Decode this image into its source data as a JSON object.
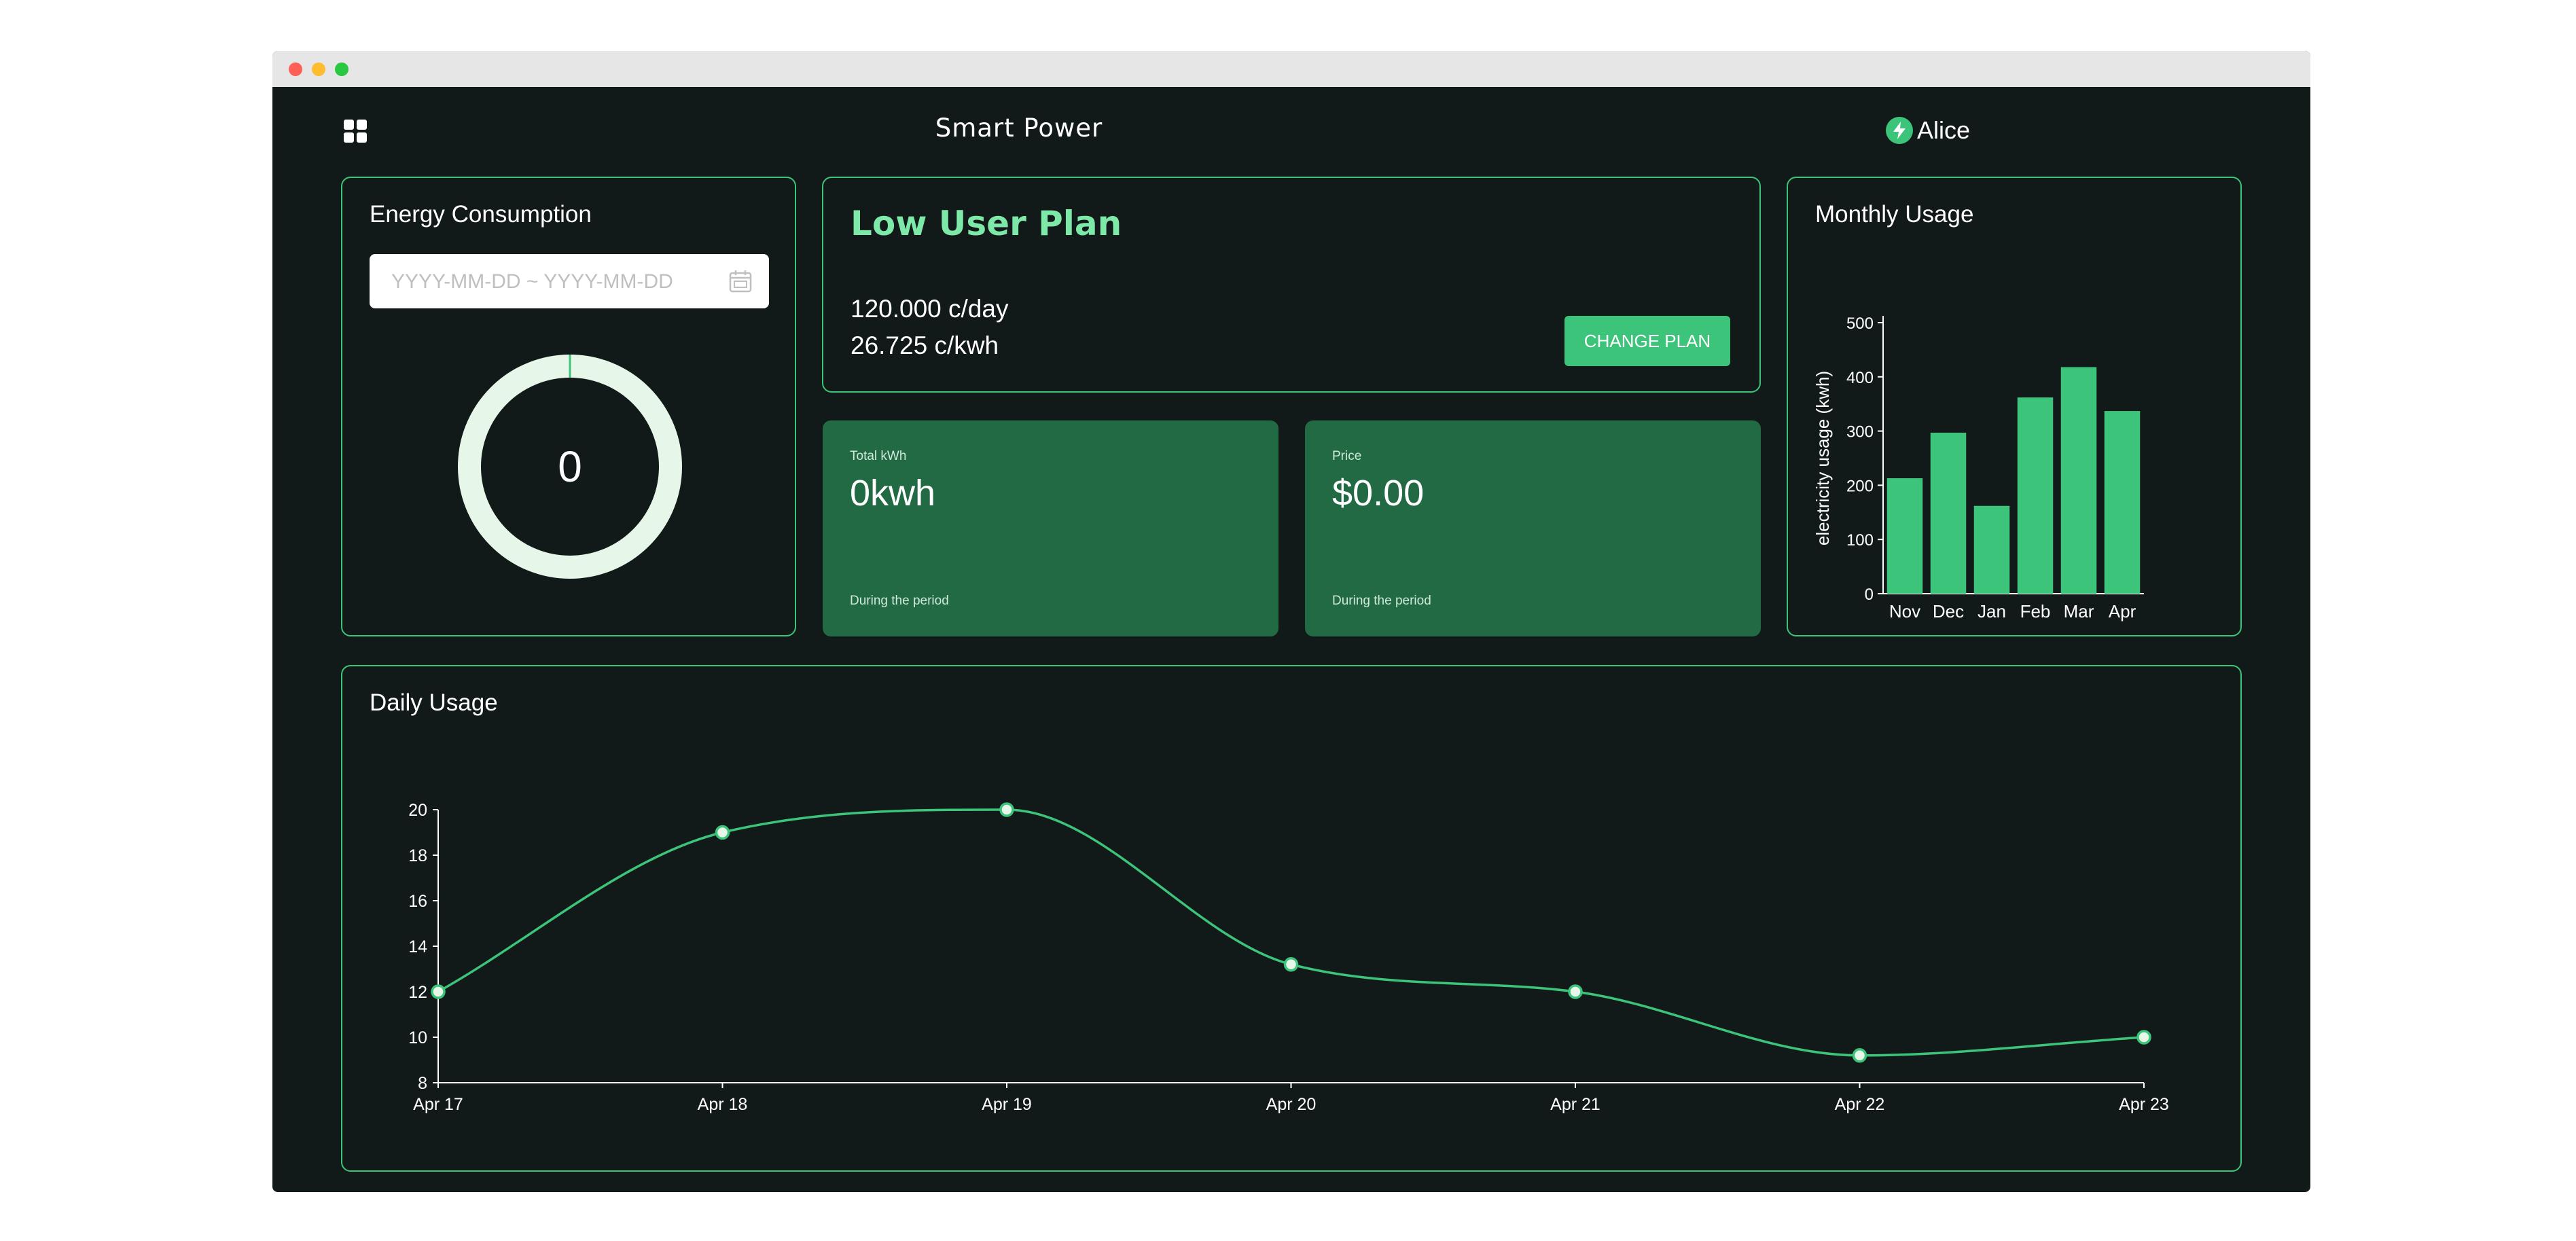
{
  "header": {
    "title": "Smart Power",
    "user_name": "Alice"
  },
  "energy": {
    "title": "Energy Consumption",
    "date_placeholder": "YYYY-MM-DD ~ YYYY-MM-DD",
    "gauge_value": "0"
  },
  "plan": {
    "name": "Low User Plan",
    "daily_rate": "120.000 c/day",
    "kwh_rate": "26.725 c/kwh",
    "change_label": "CHANGE PLAN"
  },
  "total": {
    "label": "Total kWh",
    "value": "0kwh",
    "footnote": "During the period"
  },
  "price": {
    "label": "Price",
    "value": "$0.00",
    "footnote": "During the period"
  },
  "monthly": {
    "title": "Monthly Usage"
  },
  "daily": {
    "title": "Daily Usage"
  },
  "colors": {
    "accent": "#3cc47a",
    "background": "#121a19",
    "card_fill": "#226a44",
    "plan_title": "#7ee8a8",
    "gauge_ring": "#e6f7ea"
  },
  "chart_data": [
    {
      "type": "bar",
      "categories": [
        "Nov",
        "Dec",
        "Jan",
        "Feb",
        "Mar",
        "Apr"
      ],
      "values": [
        213,
        297,
        162,
        362,
        418,
        337
      ],
      "ylabel": "electricity usage (kwh)",
      "ylim": [
        0,
        500
      ],
      "yticks": [
        0,
        100,
        200,
        300,
        400,
        500
      ],
      "grid": false
    },
    {
      "type": "line",
      "x": [
        "Apr 17",
        "Apr 18",
        "Apr 19",
        "Apr 20",
        "Apr 21",
        "Apr 22",
        "Apr 23"
      ],
      "values": [
        12,
        19,
        20,
        13.2,
        12,
        9.2,
        10
      ],
      "ylim": [
        8,
        20
      ],
      "yticks": [
        8,
        10,
        12,
        14,
        16,
        18,
        20
      ],
      "grid": false
    }
  ]
}
